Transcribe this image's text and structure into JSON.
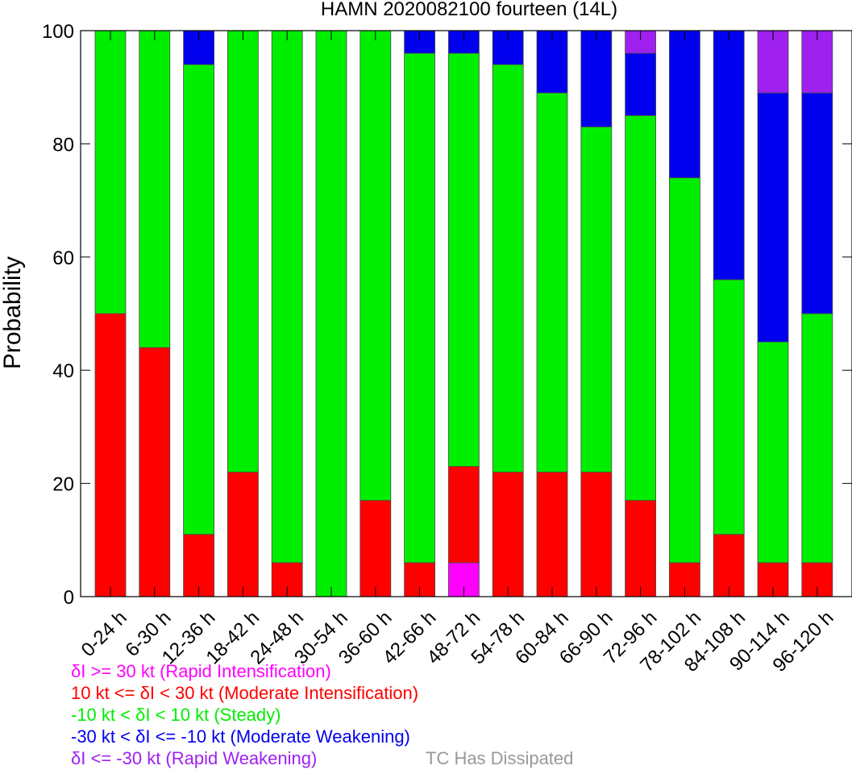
{
  "chart_data": {
    "type": "bar",
    "stacked": true,
    "title": "HAMN 2020082100 fourteen (14L)",
    "xlabel": "",
    "ylabel": "Probability",
    "ylim": [
      0,
      100
    ],
    "yticks": [
      "0",
      "20",
      "40",
      "60",
      "80",
      "100"
    ],
    "grid": false,
    "legend_position": "bottom-left",
    "categories": [
      "0-24 h",
      "6-30 h",
      "12-36 h",
      "18-42 h",
      "24-48 h",
      "30-54 h",
      "36-60 h",
      "42-66 h",
      "48-72 h",
      "54-78 h",
      "60-84 h",
      "66-90 h",
      "72-96 h",
      "78-102 h",
      "84-108 h",
      "90-114 h",
      "96-120 h"
    ],
    "series": [
      {
        "name": "δI >= 30 kt (Rapid Intensification)",
        "color": "#ff00ff",
        "values": [
          0,
          0,
          0,
          0,
          0,
          0,
          0,
          0,
          6,
          0,
          0,
          0,
          0,
          0,
          0,
          0,
          0
        ]
      },
      {
        "name": "10 kt <= δI < 30 kt (Moderate Intensification)",
        "color": "#ff0000",
        "values": [
          50,
          44,
          11,
          22,
          6,
          0,
          17,
          6,
          17,
          22,
          22,
          22,
          17,
          6,
          11,
          6,
          6
        ]
      },
      {
        "name": "-10 kt < δI < 10 kt (Steady)",
        "color": "#00ee00",
        "values": [
          50,
          56,
          83,
          78,
          94,
          100,
          83,
          90,
          73,
          72,
          67,
          61,
          68,
          68,
          45,
          39,
          44
        ]
      },
      {
        "name": "-30 kt < δI <= -10 kt (Moderate Weakening)",
        "color": "#0000ee",
        "values": [
          0,
          0,
          6,
          0,
          0,
          0,
          0,
          4,
          4,
          6,
          11,
          17,
          11,
          26,
          44,
          44,
          39
        ]
      },
      {
        "name": "δI <= -30 kt (Rapid Weakening)",
        "color": "#a020f0",
        "values": [
          0,
          0,
          0,
          0,
          0,
          0,
          0,
          0,
          0,
          0,
          0,
          0,
          4,
          0,
          0,
          11,
          11
        ]
      },
      {
        "name": "TC Has Dissipated",
        "color": "#999999",
        "values": [
          0,
          0,
          0,
          0,
          0,
          0,
          0,
          0,
          0,
          0,
          0,
          0,
          0,
          0,
          0,
          0,
          0
        ]
      }
    ]
  }
}
